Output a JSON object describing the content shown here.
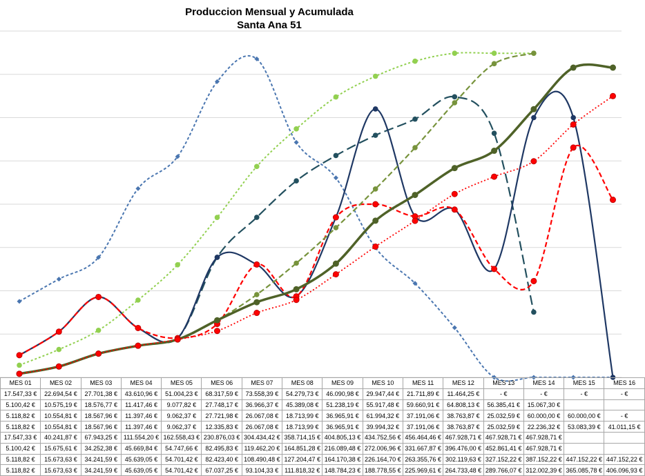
{
  "chart_data": {
    "type": "line",
    "title": "Produccion Mensual y Acumulada",
    "subtitle": "Santa Ana 51",
    "categories": [
      "MES 01",
      "MES 02",
      "MES 03",
      "MES 04",
      "MES 05",
      "MES 06",
      "MES 07",
      "MES 08",
      "MES 09",
      "MES 10",
      "MES 11",
      "MES 12",
      "MES 13",
      "MES 14",
      "MES 15",
      "MES 16"
    ],
    "ylim_monthly": [
      0,
      80000
    ],
    "ylim_cumulative": [
      0,
      500000
    ],
    "grid": true,
    "series": [
      {
        "axis": "monthly",
        "color": "#4a76b0",
        "dash": "4,3",
        "width": 2,
        "marker": "diamond",
        "values": [
          17547.33,
          22694.54,
          27701.38,
          43610.96,
          51004.23,
          68317.59,
          73558.39,
          54279.73,
          46090.98,
          29947.44,
          21711.89,
          11464.25,
          0,
          0,
          0,
          0
        ],
        "labels": [
          "17.547,33 €",
          "22.694,54 €",
          "27.701,38 €",
          "43.610,96 €",
          "51.004,23 €",
          "68.317,59 €",
          "73.558,39 €",
          "54.279,73 €",
          "46.090,98 €",
          "29.947,44 €",
          "21.711,89 €",
          "11.464,25 €",
          "-  €",
          "-  €",
          "-  €",
          "-  €"
        ]
      },
      {
        "axis": "monthly",
        "color": "#23505f",
        "dash": "14,6",
        "width": 2.2,
        "marker": "circle",
        "values": [
          5100.42,
          10575.19,
          18576.77,
          11417.46,
          9077.82,
          27748.17,
          36966.37,
          45389.08,
          51238.19,
          55917.48,
          59660.91,
          64808.13,
          56385.41,
          15067.3,
          null,
          null
        ],
        "labels": [
          "5.100,42 €",
          "10.575,19 €",
          "18.576,77 €",
          "11.417,46 €",
          "9.077,82 €",
          "27.748,17 €",
          "36.966,37 €",
          "45.389,08 €",
          "51.238,19 €",
          "55.917,48 €",
          "59.660,91 €",
          "64.808,13 €",
          "56.385,41 €",
          "15.067,30 €",
          "",
          ""
        ]
      },
      {
        "axis": "monthly",
        "color": "#1f3864",
        "dash": "",
        "width": 2.2,
        "marker": "circle",
        "values": [
          5118.82,
          10554.81,
          18567.96,
          11397.46,
          9062.37,
          27721.98,
          26067.08,
          18713.99,
          36965.91,
          61994.32,
          37191.06,
          38763.87,
          25032.59,
          60000.0,
          60000.0,
          0
        ],
        "labels": [
          "5.118,82 €",
          "10.554,81 €",
          "18.567,96 €",
          "11.397,46 €",
          "9.062,37 €",
          "27.721,98 €",
          "26.067,08 €",
          "18.713,99 €",
          "36.965,91 €",
          "61.994,32 €",
          "37.191,06 €",
          "38.763,87 €",
          "25.032,59 €",
          "60.000,00 €",
          "60.000,00 €",
          "-  €"
        ]
      },
      {
        "axis": "monthly",
        "color": "#ff0000",
        "dash": "7,4",
        "width": 2.2,
        "marker": "redcircle",
        "values": [
          5118.82,
          10554.81,
          18567.96,
          11397.46,
          9062.37,
          12335.83,
          26067.08,
          18713.99,
          36965.91,
          39994.32,
          37191.06,
          38763.87,
          25032.59,
          22236.32,
          53083.39,
          41011.15
        ],
        "labels": [
          "5.118,82 €",
          "10.554,81 €",
          "18.567,96 €",
          "11.397,46 €",
          "9.062,37 €",
          "12.335,83 €",
          "26.067,08 €",
          "18.713,99 €",
          "36.965,91 €",
          "39.994,32 €",
          "37.191,06 €",
          "38.763,87 €",
          "25.032,59 €",
          "22.236,32 €",
          "53.083,39 €",
          "41.011,15 €"
        ]
      },
      {
        "axis": "cumulative",
        "color": "#92d050",
        "dash": "3,3",
        "width": 2,
        "marker": "circle",
        "values": [
          17547.33,
          40241.87,
          67943.25,
          111554.2,
          162558.43,
          230876.03,
          304434.42,
          358714.15,
          404805.13,
          434752.56,
          456464.46,
          467928.71,
          467928.71,
          467928.71,
          null,
          null
        ],
        "labels": [
          "17.547,33 €",
          "40.241,87 €",
          "67.943,25 €",
          "111.554,20 €",
          "162.558,43 €",
          "230.876,03 €",
          "304.434,42 €",
          "358.714,15 €",
          "404.805,13 €",
          "434.752,56 €",
          "456.464,46 €",
          "467.928,71 €",
          "467.928,71 €",
          "467.928,71 €",
          "",
          ""
        ]
      },
      {
        "axis": "cumulative",
        "color": "#77933c",
        "dash": "8,4",
        "width": 2.2,
        "marker": "circle",
        "values": [
          5100.42,
          15675.61,
          34252.38,
          45669.84,
          54747.66,
          82495.83,
          119462.2,
          164851.28,
          216089.48,
          272006.96,
          331667.87,
          396476.0,
          452861.41,
          467928.71,
          null,
          null
        ],
        "labels": [
          "5.100,42 €",
          "15.675,61 €",
          "34.252,38 €",
          "45.669,84 €",
          "54.747,66 €",
          "82.495,83 €",
          "119.462,20 €",
          "164.851,28 €",
          "216.089,48 €",
          "272.006,96 €",
          "331.667,87 €",
          "396.476,00 €",
          "452.861,41 €",
          "467.928,71 €",
          "",
          ""
        ]
      },
      {
        "axis": "cumulative",
        "color": "#4f6228",
        "dash": "",
        "width": 3.5,
        "marker": "circle",
        "values": [
          5118.82,
          15673.63,
          34241.59,
          45639.05,
          54701.42,
          82423.4,
          108490.48,
          127204.47,
          164170.38,
          226164.7,
          263355.76,
          302119.63,
          327152.22,
          387152.22,
          447152.22,
          447152.22
        ],
        "labels": [
          "5.118,82 €",
          "15.673,63 €",
          "34.241,59 €",
          "45.639,05 €",
          "54.701,42 €",
          "82.423,40 €",
          "108.490,48 €",
          "127.204,47 €",
          "164.170,38 €",
          "226.164,70 €",
          "263.355,76 €",
          "302.119,63 €",
          "327.152,22 €",
          "387.152,22 €",
          "447.152,22 €",
          "447.152,22 €"
        ]
      },
      {
        "axis": "cumulative",
        "color": "#ff0000",
        "dash": "2,3",
        "width": 1.8,
        "marker": "redcircle",
        "values": [
          5118.82,
          15673.63,
          34241.59,
          45639.05,
          54701.42,
          67037.25,
          93104.33,
          111818.32,
          148784.23,
          188778.55,
          225969.61,
          264733.48,
          289766.07,
          312002.39,
          365085.78,
          406096.93
        ],
        "labels": [
          "5.118,82 €",
          "15.673,63 €",
          "34.241,59 €",
          "45.639,05 €",
          "54.701,42 €",
          "67.037,25 €",
          "93.104,33 €",
          "111.818,32 €",
          "148.784,23 €",
          "188.778,55 €",
          "225.969,61 €",
          "264.733,48 €",
          "289.766,07 €",
          "312.002,39 €",
          "365.085,78 €",
          "406.096,93 €"
        ]
      }
    ]
  }
}
